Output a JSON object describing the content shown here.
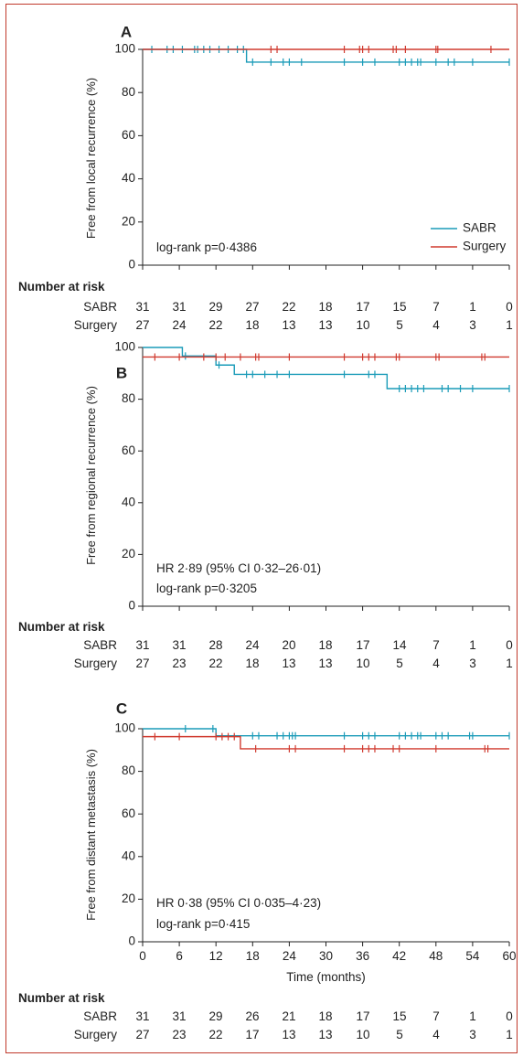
{
  "colors": {
    "sabr": "#1a9bb8",
    "surgery": "#d03a2f",
    "border": "#c0392b"
  },
  "chart_data": [
    {
      "type": "line",
      "panel_label": "A",
      "ylabel": "Free from local recurrence (%)",
      "xlabel": "",
      "ylim": [
        0,
        100
      ],
      "xlim": [
        0,
        60
      ],
      "yticks": [
        "0",
        "20",
        "40",
        "60",
        "80",
        "100"
      ],
      "xticks": [],
      "legend": {
        "position": "bottom-right",
        "entries": [
          "SABR",
          "Surgery"
        ]
      },
      "annotations": [
        "log-rank p=0·4386"
      ],
      "series": [
        {
          "name": "SABR",
          "color_key": "sabr",
          "steps": [
            [
              0,
              100
            ],
            [
              17,
              94.1
            ]
          ],
          "censored": [
            1.5,
            4,
            5,
            6.5,
            8.5,
            9,
            10,
            11,
            12.5,
            14,
            15.5,
            16.5,
            18,
            21,
            23,
            24,
            26,
            33,
            36,
            38,
            42,
            43,
            44,
            45,
            45.5,
            48,
            50,
            51,
            54,
            60
          ]
        },
        {
          "name": "Surgery",
          "color_key": "surgery",
          "steps": [
            [
              0,
              100
            ]
          ],
          "censored": [
            21,
            22,
            33,
            35.5,
            36,
            37,
            41,
            41.5,
            43,
            48,
            48.3,
            57
          ]
        }
      ],
      "risk_table": {
        "title": "Number at risk",
        "rows": [
          {
            "name": "SABR",
            "values": [
              "31",
              "31",
              "29",
              "27",
              "22",
              "18",
              "17",
              "15",
              "7",
              "1",
              "0"
            ]
          },
          {
            "name": "Surgery",
            "values": [
              "27",
              "24",
              "22",
              "18",
              "13",
              "13",
              "10",
              "5",
              "4",
              "3",
              "1"
            ]
          }
        ]
      }
    },
    {
      "type": "line",
      "panel_label": "B",
      "ylabel": "Free from regional recurrence (%)",
      "xlabel": "",
      "ylim": [
        0,
        100
      ],
      "xlim": [
        0,
        60
      ],
      "yticks": [
        "0",
        "20",
        "40",
        "60",
        "80",
        "100"
      ],
      "xticks": [],
      "annotations": [
        "HR 2·89 (95% CI 0·32–26·01)",
        "log-rank p=0·3205"
      ],
      "series": [
        {
          "name": "SABR",
          "color_key": "sabr",
          "steps": [
            [
              0,
              100
            ],
            [
              6.5,
              96.7
            ],
            [
              12,
              93.2
            ],
            [
              15,
              89.6
            ],
            [
              40,
              84.1
            ]
          ],
          "censored": [
            7,
            12.5,
            17,
            18,
            20,
            22,
            24,
            33,
            37,
            38,
            42,
            43,
            44,
            45,
            46,
            49,
            50,
            52,
            54,
            60
          ]
        },
        {
          "name": "Surgery",
          "color_key": "surgery",
          "steps": [
            [
              0,
              96.3
            ]
          ],
          "censored": [
            2,
            6,
            10,
            12,
            13.5,
            16,
            18.5,
            19,
            24,
            33,
            36,
            37,
            38,
            41.5,
            42,
            48,
            48.5,
            55.5,
            56
          ]
        }
      ],
      "risk_table": {
        "title": "Number at risk",
        "rows": [
          {
            "name": "SABR",
            "values": [
              "31",
              "31",
              "28",
              "24",
              "20",
              "18",
              "17",
              "14",
              "7",
              "1",
              "0"
            ]
          },
          {
            "name": "Surgery",
            "values": [
              "27",
              "23",
              "22",
              "18",
              "13",
              "13",
              "10",
              "5",
              "4",
              "3",
              "1"
            ]
          }
        ]
      }
    },
    {
      "type": "line",
      "panel_label": "C",
      "ylabel": "Free from distant metastasis (%)",
      "xlabel": "Time (months)",
      "ylim": [
        0,
        100
      ],
      "xlim": [
        0,
        60
      ],
      "yticks": [
        "0",
        "20",
        "40",
        "60",
        "80",
        "100"
      ],
      "xticks": [
        "0",
        "6",
        "12",
        "18",
        "24",
        "30",
        "36",
        "42",
        "48",
        "54",
        "60"
      ],
      "annotations": [
        "HR 0·38 (95% CI 0·035–4·23)",
        "log-rank p=0·415"
      ],
      "series": [
        {
          "name": "SABR",
          "color_key": "sabr",
          "steps": [
            [
              0,
              100
            ],
            [
              12,
              96.7
            ]
          ],
          "censored": [
            7,
            11.5,
            18,
            19,
            22,
            23,
            24,
            24.5,
            25,
            33,
            36,
            37,
            38,
            42,
            43,
            44,
            45,
            45.5,
            48,
            49,
            50,
            53.5,
            54,
            60
          ]
        },
        {
          "name": "Surgery",
          "color_key": "surgery",
          "steps": [
            [
              0,
              96.3
            ],
            [
              16,
              90.6
            ]
          ],
          "censored": [
            2,
            6,
            12,
            13,
            14,
            15,
            18.5,
            24,
            25,
            33,
            36,
            37,
            38,
            41,
            42,
            48,
            56,
            56.5
          ]
        }
      ],
      "risk_table": {
        "title": "Number at risk",
        "rows": [
          {
            "name": "SABR",
            "values": [
              "31",
              "31",
              "29",
              "26",
              "21",
              "18",
              "17",
              "15",
              "7",
              "1",
              "0"
            ]
          },
          {
            "name": "Surgery",
            "values": [
              "27",
              "23",
              "22",
              "17",
              "13",
              "13",
              "10",
              "5",
              "4",
              "3",
              "1"
            ]
          }
        ]
      }
    }
  ]
}
